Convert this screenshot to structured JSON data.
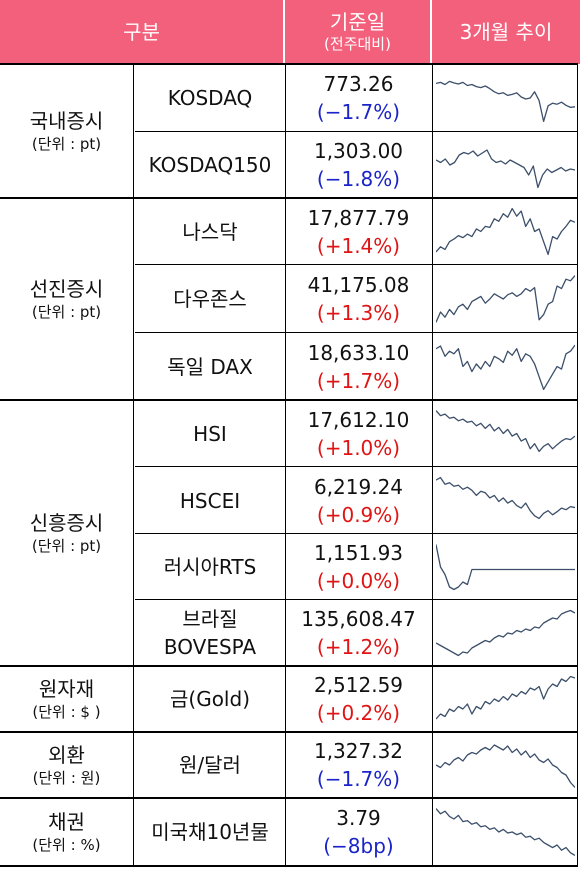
{
  "header": {
    "category": "구분",
    "base_date": "기준일",
    "base_sub": "(전주대비)",
    "trend": "3개월 추이"
  },
  "groups": [
    {
      "name": "국내증시",
      "unit": "(단위 : pt)"
    },
    {
      "name": "선진증시",
      "unit": "(단위 : pt)"
    },
    {
      "name": "신흥증시",
      "unit": "(단위 : pt)"
    },
    {
      "name": "원자재",
      "unit": "(단위 : $ )"
    },
    {
      "name": "외환",
      "unit": "(단위 : 원)"
    },
    {
      "name": "채권",
      "unit": "(단위 : %)"
    }
  ],
  "rows": [
    {
      "item": "KOSDAQ",
      "value": "773.26",
      "change": "(−1.7%)",
      "dir": "down",
      "spark": [
        0.78,
        0.8,
        0.76,
        0.82,
        0.79,
        0.77,
        0.8,
        0.74,
        0.76,
        0.72,
        0.7,
        0.73,
        0.68,
        0.62,
        0.58,
        0.6,
        0.55,
        0.57,
        0.6,
        0.52,
        0.48,
        0.5,
        0.62,
        0.45,
        0.05,
        0.35,
        0.4,
        0.38,
        0.42,
        0.36,
        0.32,
        0.33
      ]
    },
    {
      "item": "KOSDAQ150",
      "value": "1,303.00",
      "change": "(−1.8%)",
      "dir": "down",
      "spark": [
        0.6,
        0.55,
        0.62,
        0.5,
        0.55,
        0.7,
        0.75,
        0.72,
        0.78,
        0.68,
        0.74,
        0.8,
        0.62,
        0.55,
        0.58,
        0.52,
        0.6,
        0.55,
        0.5,
        0.45,
        0.3,
        0.48,
        0.05,
        0.3,
        0.42,
        0.35,
        0.4,
        0.45,
        0.38,
        0.42,
        0.4
      ]
    },
    {
      "item": "나스닥",
      "value": "17,877.79",
      "change": "(+1.4%)",
      "dir": "up",
      "spark": [
        0.1,
        0.2,
        0.15,
        0.3,
        0.35,
        0.42,
        0.38,
        0.45,
        0.4,
        0.55,
        0.5,
        0.6,
        0.58,
        0.75,
        0.7,
        0.85,
        0.78,
        0.95,
        0.8,
        0.9,
        0.6,
        0.75,
        0.5,
        0.55,
        0.3,
        0.05,
        0.4,
        0.35,
        0.5,
        0.6,
        0.72,
        0.68
      ]
    },
    {
      "item": "다우존스",
      "value": "41,175.08",
      "change": "(+1.3%)",
      "dir": "up",
      "spark": [
        0.05,
        0.25,
        0.15,
        0.3,
        0.2,
        0.35,
        0.4,
        0.3,
        0.45,
        0.5,
        0.55,
        0.42,
        0.5,
        0.6,
        0.55,
        0.5,
        0.58,
        0.62,
        0.55,
        0.6,
        0.7,
        0.65,
        0.72,
        0.1,
        0.2,
        0.4,
        0.45,
        0.75,
        0.7,
        0.88,
        0.85,
        0.95
      ]
    },
    {
      "item": "독일 DAX",
      "value": "18,633.10",
      "change": "(+1.7%)",
      "dir": "up",
      "spark": [
        0.85,
        0.9,
        0.7,
        0.8,
        0.75,
        0.85,
        0.5,
        0.6,
        0.4,
        0.55,
        0.45,
        0.6,
        0.5,
        0.7,
        0.65,
        0.58,
        0.8,
        0.72,
        0.85,
        0.6,
        0.75,
        0.7,
        0.55,
        0.3,
        0.05,
        0.2,
        0.35,
        0.5,
        0.45,
        0.75,
        0.8,
        0.92
      ]
    },
    {
      "item": "HSI",
      "value": "17,612.10",
      "change": "(+1.0%)",
      "dir": "up",
      "spark": [
        0.95,
        0.85,
        0.88,
        0.8,
        0.82,
        0.75,
        0.78,
        0.72,
        0.74,
        0.65,
        0.7,
        0.6,
        0.68,
        0.55,
        0.62,
        0.5,
        0.58,
        0.45,
        0.5,
        0.35,
        0.4,
        0.2,
        0.3,
        0.15,
        0.25,
        0.3,
        0.2,
        0.28,
        0.35,
        0.4,
        0.38,
        0.45
      ]
    },
    {
      "item": "HSCEI",
      "value": "6,219.24",
      "change": "(+0.9%)",
      "dir": "up",
      "spark": [
        0.9,
        0.95,
        0.82,
        0.85,
        0.78,
        0.8,
        0.72,
        0.76,
        0.7,
        0.6,
        0.68,
        0.65,
        0.55,
        0.6,
        0.48,
        0.55,
        0.45,
        0.5,
        0.4,
        0.35,
        0.45,
        0.3,
        0.2,
        0.15,
        0.25,
        0.3,
        0.22,
        0.28,
        0.35,
        0.32,
        0.38,
        0.36
      ]
    },
    {
      "item": "러시아RTS",
      "value": "1,151.93",
      "change": "(+0.0%)",
      "dir": "up",
      "spark": [
        0.95,
        0.5,
        0.35,
        0.1,
        0.05,
        0.1,
        0.2,
        0.15,
        0.45,
        0.45,
        0.45,
        0.45,
        0.45,
        0.45,
        0.45,
        0.45,
        0.45,
        0.45,
        0.45,
        0.45,
        0.45,
        0.45,
        0.45,
        0.45,
        0.45,
        0.45,
        0.45,
        0.45,
        0.45,
        0.45,
        0.45,
        0.45
      ]
    },
    {
      "item": "브라질 BOVESPA",
      "item_lines": [
        "브라질",
        "BOVESPA"
      ],
      "value": "135,608.47",
      "change": "(+1.2%)",
      "dir": "up",
      "spark": [
        0.3,
        0.25,
        0.2,
        0.15,
        0.1,
        0.05,
        0.12,
        0.1,
        0.2,
        0.25,
        0.3,
        0.35,
        0.32,
        0.4,
        0.45,
        0.42,
        0.5,
        0.48,
        0.55,
        0.52,
        0.58,
        0.55,
        0.62,
        0.6,
        0.7,
        0.75,
        0.8,
        0.78,
        0.88,
        0.92,
        0.95,
        0.9
      ]
    },
    {
      "item": "금(Gold)",
      "value": "2,512.59",
      "change": "(+0.2%)",
      "dir": "up",
      "spark": [
        0.1,
        0.2,
        0.15,
        0.3,
        0.25,
        0.35,
        0.3,
        0.4,
        0.2,
        0.35,
        0.3,
        0.45,
        0.4,
        0.5,
        0.45,
        0.55,
        0.48,
        0.6,
        0.55,
        0.65,
        0.6,
        0.72,
        0.68,
        0.75,
        0.5,
        0.7,
        0.8,
        0.75,
        0.9,
        0.85,
        0.95,
        0.92
      ]
    },
    {
      "item": "원/달러",
      "value": "1,327.32",
      "change": "(−1.7%)",
      "dir": "down",
      "spark": [
        0.5,
        0.45,
        0.55,
        0.5,
        0.6,
        0.65,
        0.58,
        0.7,
        0.75,
        0.72,
        0.8,
        0.85,
        0.8,
        0.9,
        0.85,
        0.8,
        0.88,
        0.75,
        0.82,
        0.7,
        0.78,
        0.65,
        0.72,
        0.6,
        0.55,
        0.62,
        0.5,
        0.45,
        0.35,
        0.3,
        0.15,
        0.05
      ]
    },
    {
      "item": "미국채10년물",
      "value": "3.79",
      "change": "(−8bp)",
      "dir": "down",
      "spark": [
        0.95,
        0.85,
        0.9,
        0.8,
        0.75,
        0.82,
        0.7,
        0.72,
        0.65,
        0.68,
        0.6,
        0.62,
        0.55,
        0.58,
        0.5,
        0.55,
        0.48,
        0.5,
        0.45,
        0.48,
        0.4,
        0.42,
        0.35,
        0.38,
        0.3,
        0.25,
        0.2,
        0.25,
        0.15,
        0.2,
        0.1,
        0.05
      ]
    }
  ]
}
